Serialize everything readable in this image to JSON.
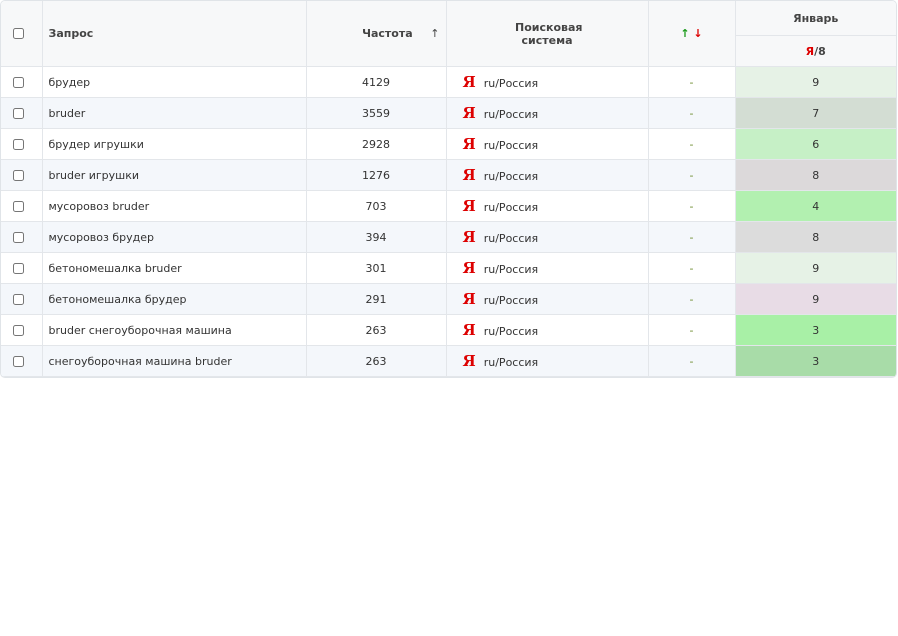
{
  "header": {
    "query": "Запрос",
    "frequency": "Частота",
    "sort_icon": "↑",
    "engine": "Поисковая система",
    "change_up": "↑",
    "change_down": "↓",
    "month": "Январь",
    "engine_logo": "Я",
    "engine_region": "/8"
  },
  "rows": [
    {
      "query": "брудер",
      "frequency": 4129,
      "logo": "Я",
      "region": "ru/Россия",
      "change": "-",
      "position": 9,
      "color": "#e6f2e6"
    },
    {
      "query": "bruder",
      "frequency": 3559,
      "logo": "Я",
      "region": "ru/Россия",
      "change": "-",
      "position": 7,
      "color": "#d3ddd3"
    },
    {
      "query": "брудер игрушки",
      "frequency": 2928,
      "logo": "Я",
      "region": "ru/Россия",
      "change": "-",
      "position": 6,
      "color": "#c6f0c6"
    },
    {
      "query": "bruder игрушки",
      "frequency": 1276,
      "logo": "Я",
      "region": "ru/Россия",
      "change": "-",
      "position": 8,
      "color": "#dcd9da"
    },
    {
      "query": "мусоровоз bruder",
      "frequency": 703,
      "logo": "Я",
      "region": "ru/Россия",
      "change": "-",
      "position": 4,
      "color": "#b2f0b0"
    },
    {
      "query": "мусоровоз брудер",
      "frequency": 394,
      "logo": "Я",
      "region": "ru/Россия",
      "change": "-",
      "position": 8,
      "color": "#dcdcdc"
    },
    {
      "query": "бетономешалка bruder",
      "frequency": 301,
      "logo": "Я",
      "region": "ru/Россия",
      "change": "-",
      "position": 9,
      "color": "#e6f2e6"
    },
    {
      "query": "бетономешалка брудер",
      "frequency": 291,
      "logo": "Я",
      "region": "ru/Россия",
      "change": "-",
      "position": 9,
      "color": "#e8dce6"
    },
    {
      "query": "bruder снегоуборочная машина",
      "frequency": 263,
      "logo": "Я",
      "region": "ru/Россия",
      "change": "-",
      "position": 3,
      "color": "#a8f0a6"
    },
    {
      "query": "снегоуборочная машина bruder",
      "frequency": 263,
      "logo": "Я",
      "region": "ru/Россия",
      "change": "-",
      "position": 3,
      "color": "#a8dca8"
    }
  ]
}
